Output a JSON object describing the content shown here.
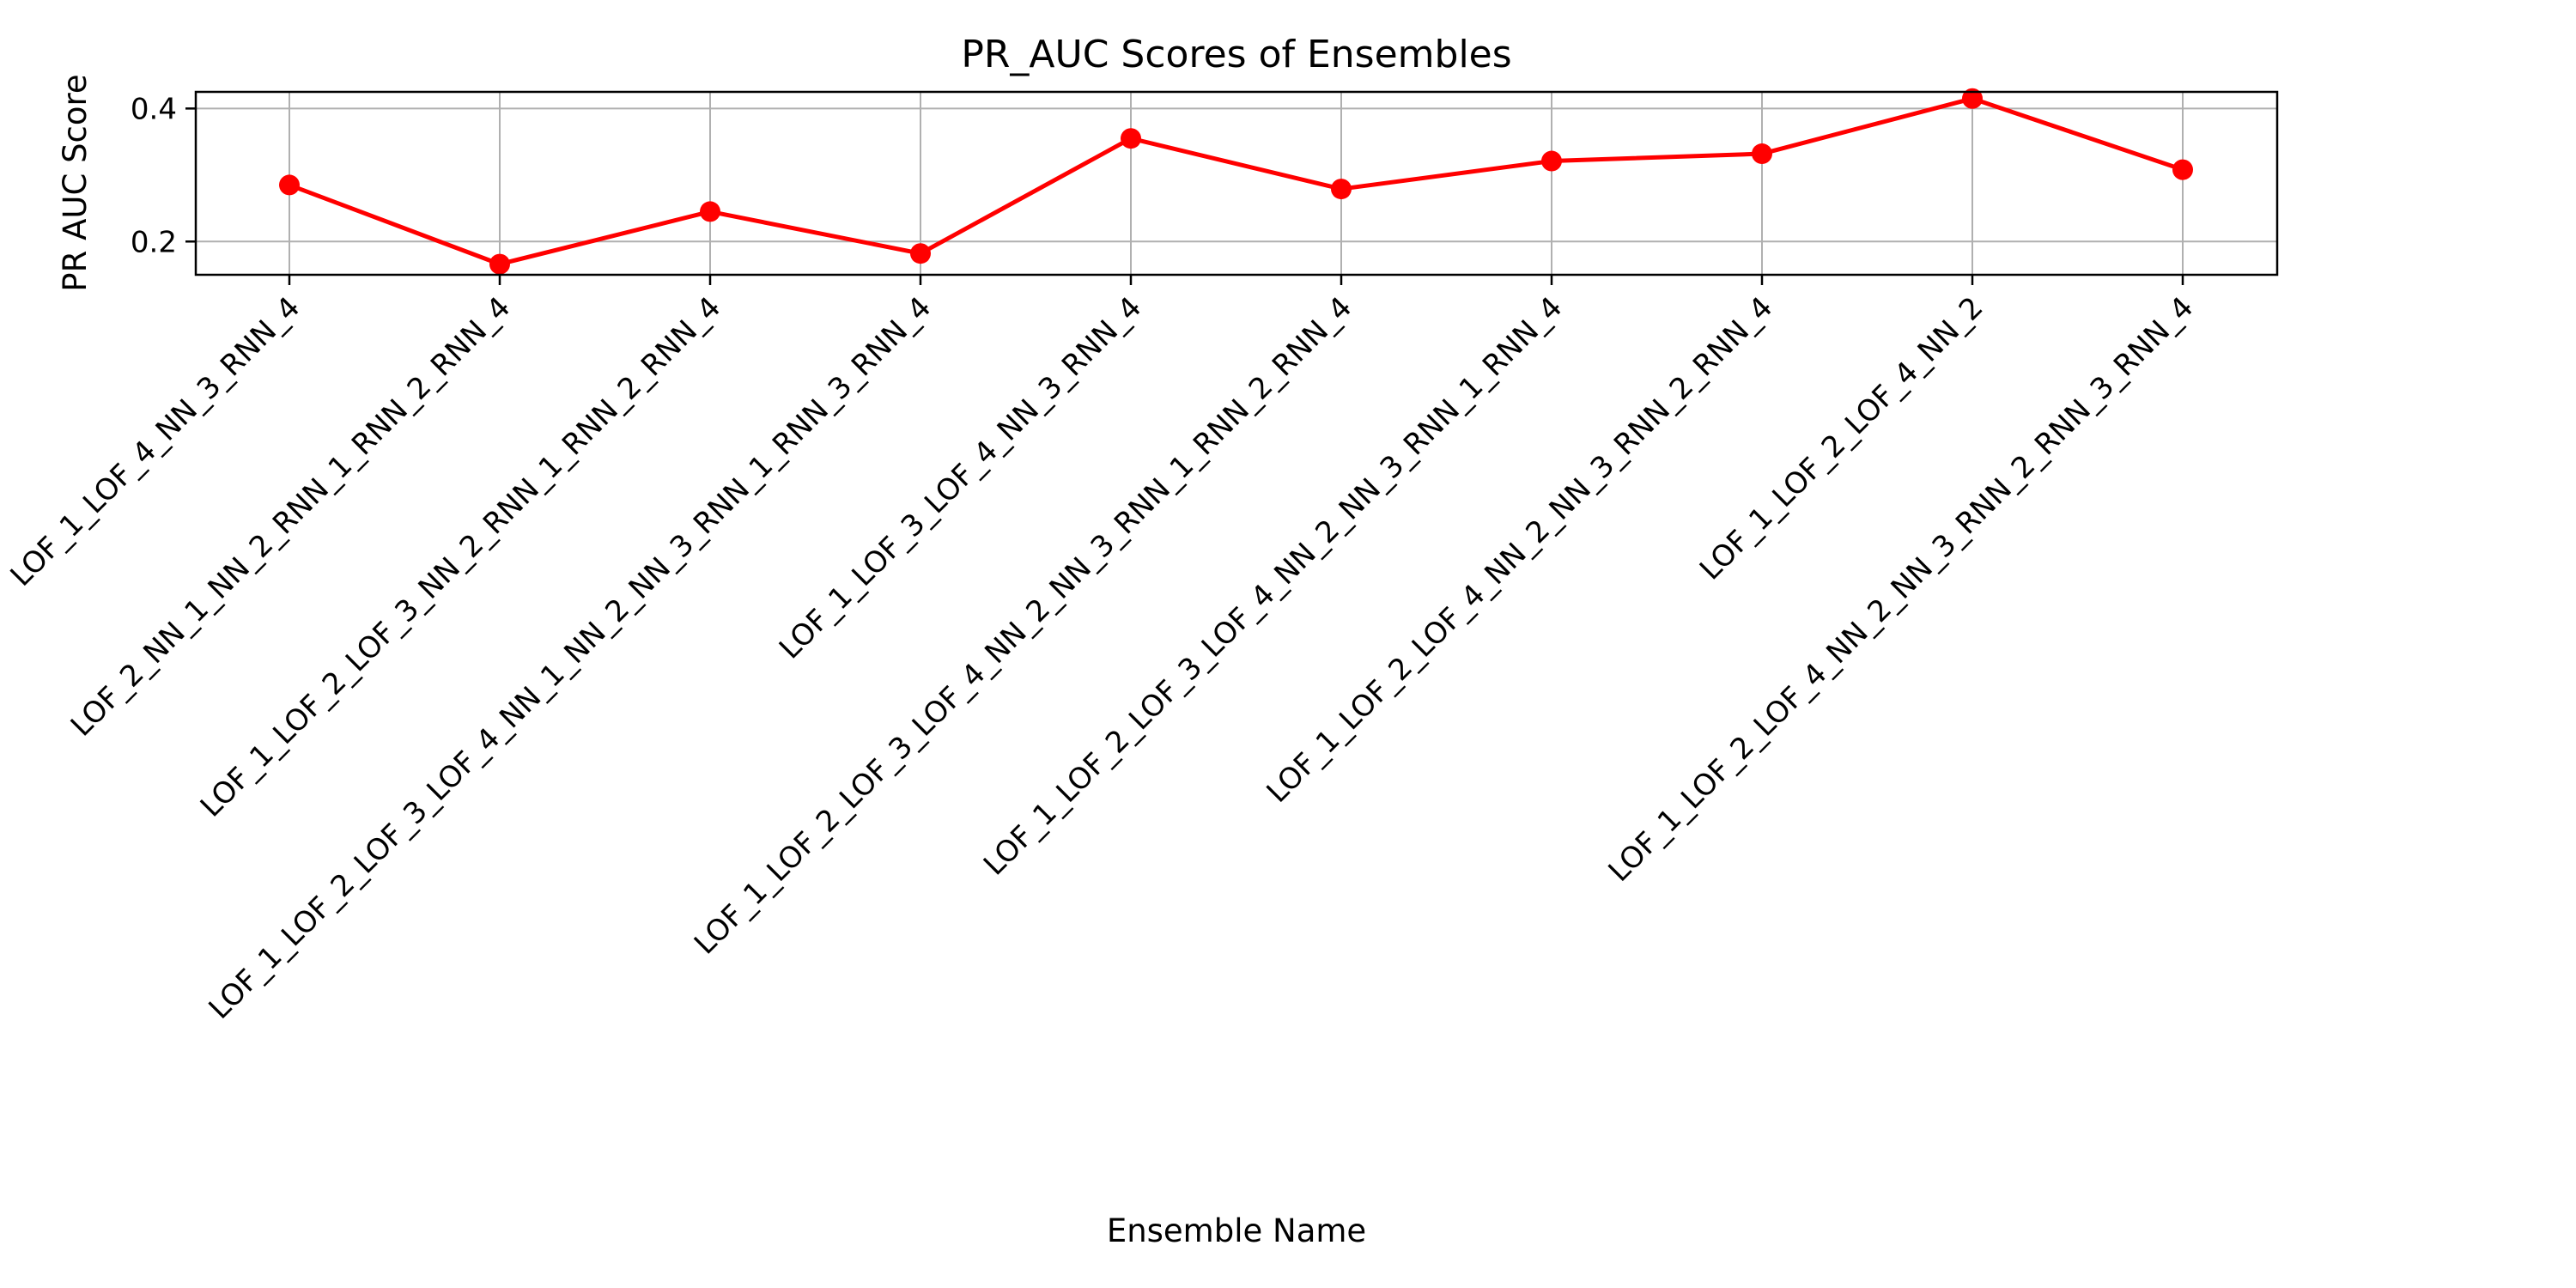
{
  "chart_data": {
    "type": "line",
    "title": "PR_AUC Scores of Ensembles",
    "xlabel": "Ensemble Name",
    "ylabel": "PR AUC Score",
    "categories": [
      "LOF_1_LOF_4_NN_3_RNN_4",
      "LOF_2_NN_1_NN_2_RNN_1_RNN_2_RNN_4",
      "LOF_1_LOF_2_LOF_3_NN_2_RNN_1_RNN_2_RNN_4",
      "LOF_1_LOF_2_LOF_3_LOF_4_NN_1_NN_2_NN_3_RNN_1_RNN_3_RNN_4",
      "LOF_1_LOF_3_LOF_4_NN_3_RNN_4",
      "LOF_1_LOF_2_LOF_3_LOF_4_NN_2_NN_3_RNN_1_RNN_2_RNN_4",
      "LOF_1_LOF_2_LOF_3_LOF_4_NN_2_NN_3_RNN_1_RNN_4",
      "LOF_1_LOF_2_LOF_4_NN_2_NN_3_RNN_2_RNN_4",
      "LOF_1_LOF_2_LOF_4_NN_2",
      "LOF_1_LOF_2_LOF_4_NN_2_NN_3_RNN_2_RNN_3_RNN_4"
    ],
    "series": [
      {
        "values": [
          0.285,
          0.166,
          0.245,
          0.182,
          0.355,
          0.279,
          0.321,
          0.332,
          0.415,
          0.308
        ]
      }
    ],
    "ylim": [
      0.15,
      0.425
    ],
    "yticks": [
      0.2,
      0.4
    ],
    "yticklabels": [
      "0.2",
      "0.4"
    ],
    "grid": true,
    "colors": {
      "line": "#ff0000",
      "marker": "#ff0000",
      "grid": "#b0b0b0",
      "axes": "#000000"
    }
  }
}
